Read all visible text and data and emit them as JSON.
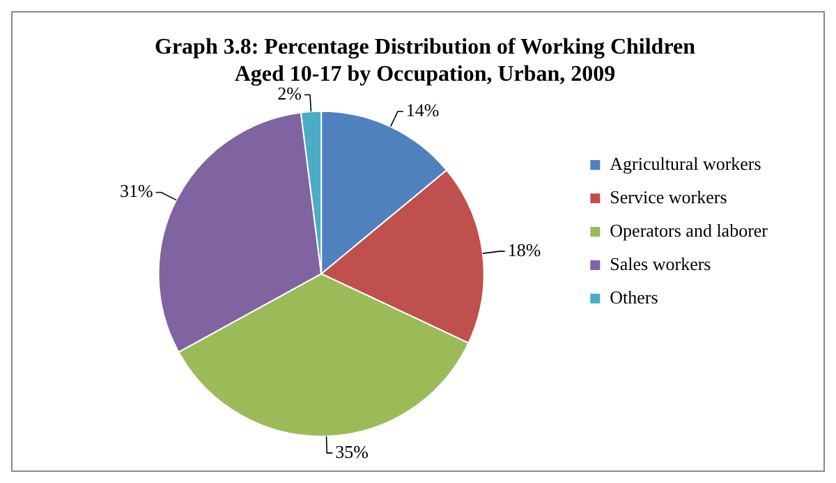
{
  "chart_data": {
    "type": "pie",
    "title": "Graph 3.8: Percentage Distribution of Working Children\nAged 10-17 by Occupation, Urban, 2009",
    "categories": [
      "Agricultural workers",
      "Service workers",
      "Operators and laborer",
      "Sales workers",
      "Others"
    ],
    "values": [
      14,
      18,
      35,
      31,
      2
    ],
    "colors": [
      "#4f81bd",
      "#c0504d",
      "#9bbb59",
      "#8064a2",
      "#4bacc6"
    ],
    "value_labels": [
      "14%",
      "18%",
      "35%",
      "31%",
      "2%"
    ],
    "legend": "right"
  }
}
